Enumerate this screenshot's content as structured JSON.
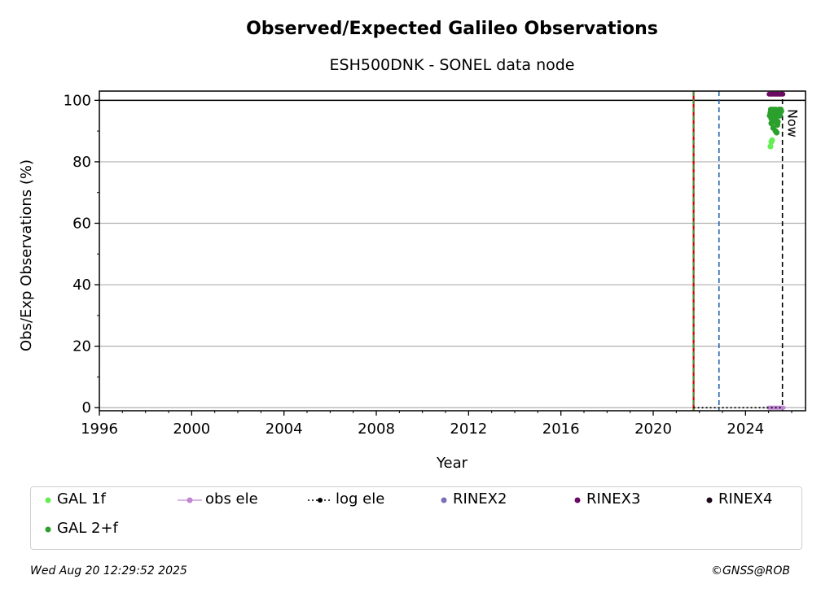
{
  "chart_data": {
    "type": "scatter",
    "title": "Observed/Expected Galileo Observations",
    "subtitle": "ESH500DNK - SONEL data node",
    "xlabel": "Year",
    "ylabel": "Obs/Exp Observations (%)",
    "xlim": [
      1996,
      2026.6
    ],
    "ylim": [
      -1,
      103
    ],
    "xticks": [
      1996,
      2000,
      2004,
      2008,
      2012,
      2016,
      2020,
      2024
    ],
    "yticks": [
      0,
      20,
      40,
      60,
      80,
      100
    ],
    "grid": "horizontal",
    "reference_lines": [
      {
        "type": "hline",
        "y": 100,
        "color": "#000000",
        "style": "solid"
      },
      {
        "type": "vline",
        "x": 2021.75,
        "color": "#cc0000",
        "style": "solid"
      },
      {
        "type": "vline",
        "x": 2021.75,
        "color": "#2ca02c",
        "style": "dashed"
      },
      {
        "type": "vline",
        "x": 2022.85,
        "color": "#1f5fa8",
        "style": "dashed"
      },
      {
        "type": "vline",
        "x": 2025.6,
        "color": "#000000",
        "style": "dashed",
        "label": "Now"
      }
    ],
    "series": [
      {
        "name": "GAL 1f",
        "color": "#66ee55",
        "x": [
          2025.08,
          2025.12,
          2025.15
        ],
        "values": [
          85,
          86.5,
          87
        ]
      },
      {
        "name": "GAL 2+f",
        "color": "#2ca02c",
        "x": [
          2025.05,
          2025.08,
          2025.1,
          2025.12,
          2025.15,
          2025.18,
          2025.2,
          2025.22,
          2025.25,
          2025.28,
          2025.3,
          2025.32,
          2025.35,
          2025.38,
          2025.4,
          2025.42,
          2025.45,
          2025.48,
          2025.5,
          2025.52,
          2025.55,
          2025.12,
          2025.2,
          2025.3,
          2025.35,
          2025.4
        ],
        "values": [
          95,
          96,
          97,
          94,
          96.5,
          95,
          97,
          93,
          96,
          95.5,
          97,
          94,
          96,
          92,
          95,
          96.5,
          97,
          95,
          96,
          97,
          96.5,
          92.5,
          91,
          90,
          89.5,
          93
        ]
      },
      {
        "name": "obs ele",
        "color": "#c086d3",
        "x": [
          2025.0,
          2025.65
        ],
        "values": [
          0,
          0
        ]
      },
      {
        "name": "log ele",
        "color": "#000000",
        "x": [
          2021.75,
          2025.6
        ],
        "values": [
          0,
          0
        ]
      },
      {
        "name": "RINEX2",
        "color": "#7b6fb5",
        "x": [],
        "values": []
      },
      {
        "name": "RINEX3",
        "color": "#6a0a63",
        "x": [
          2025.02,
          2025.62
        ],
        "values": [
          102,
          102
        ]
      },
      {
        "name": "RINEX4",
        "color": "#1a0a1a",
        "x": [],
        "values": []
      }
    ],
    "annotations": [
      "Now"
    ]
  },
  "legend": {
    "placement": "bottom",
    "items": [
      {
        "label": "GAL 1f",
        "color": "#66ee55",
        "marker": "dot"
      },
      {
        "label": "obs ele",
        "color": "#c086d3",
        "marker": "line-dot"
      },
      {
        "label": "log ele",
        "color": "#000000",
        "marker": "dotted-line-dot"
      },
      {
        "label": "RINEX2",
        "color": "#7b6fb5",
        "marker": "dot"
      },
      {
        "label": "RINEX3",
        "color": "#6a0a63",
        "marker": "dot"
      },
      {
        "label": "RINEX4",
        "color": "#1a0a1a",
        "marker": "dot"
      },
      {
        "label": "GAL 2+f",
        "color": "#2ca02c",
        "marker": "dot"
      }
    ]
  },
  "footer": {
    "timestamp": "Wed Aug 20 12:29:52 2025",
    "credit": "©GNSS@ROB"
  }
}
